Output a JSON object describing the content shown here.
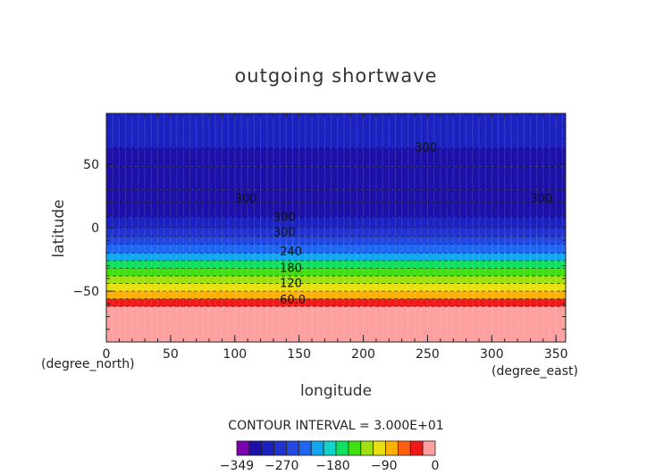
{
  "chart_data": {
    "type": "heatmap",
    "title": "outgoing shortwave",
    "xlabel": "longitude",
    "ylabel": "latitude",
    "x_unit": "(degree_east)",
    "y_unit": "(degree_north)",
    "xlim": [
      0,
      357.5
    ],
    "ylim": [
      -90,
      90
    ],
    "x_ticks": [
      0,
      50,
      100,
      150,
      200,
      250,
      300,
      350
    ],
    "y_ticks": [
      -50,
      0,
      50
    ],
    "contour_interval_text": "CONTOUR INTERVAL = 3.000E+01",
    "colorbar": {
      "min": -349,
      "max": 0,
      "tick_values": [
        -349,
        -270,
        -180,
        -90,
        0
      ],
      "tick_labels": [
        "−349",
        "−270",
        "−180",
        "−90",
        "0"
      ],
      "colors": [
        "#7a00b0",
        "#1c10a8",
        "#1c22c0",
        "#2033d0",
        "#2447e0",
        "#1f66f0",
        "#12a6f0",
        "#10d4c8",
        "#10e060",
        "#40e010",
        "#a0e010",
        "#e8e010",
        "#ffb000",
        "#ff6010",
        "#f01818",
        "#ffa0a0"
      ]
    },
    "contour_labels": [
      {
        "text": "300",
        "lon": 240,
        "lat": 63
      },
      {
        "text": "300",
        "lon": 100,
        "lat": 23
      },
      {
        "text": "300",
        "lon": 330,
        "lat": 23
      },
      {
        "text": "300",
        "lon": 130,
        "lat": 8
      },
      {
        "text": "300",
        "lon": 130,
        "lat": -4
      },
      {
        "text": "240",
        "lon": 135,
        "lat": -19
      },
      {
        "text": "180",
        "lon": 135,
        "lat": -32
      },
      {
        "text": "120",
        "lon": 135,
        "lat": -44
      },
      {
        "text": "60.0",
        "lon": 135,
        "lat": -57
      }
    ],
    "lat_bands": [
      {
        "lat_min": -90,
        "lat_max": -62,
        "value": -5
      },
      {
        "lat_min": -62,
        "lat_max": -56,
        "value": -40
      },
      {
        "lat_min": -56,
        "lat_max": -50,
        "value": -75
      },
      {
        "lat_min": -50,
        "lat_max": -44,
        "value": -100
      },
      {
        "lat_min": -44,
        "lat_max": -38,
        "value": -130
      },
      {
        "lat_min": -38,
        "lat_max": -32,
        "value": -150
      },
      {
        "lat_min": -32,
        "lat_max": -26,
        "value": -170
      },
      {
        "lat_min": -26,
        "lat_max": -20,
        "value": -200
      },
      {
        "lat_min": -20,
        "lat_max": -13,
        "value": -220
      },
      {
        "lat_min": -13,
        "lat_max": -7,
        "value": -250
      },
      {
        "lat_min": -7,
        "lat_max": 0,
        "value": -280
      },
      {
        "lat_min": 0,
        "lat_max": 8,
        "value": -300
      },
      {
        "lat_min": 8,
        "lat_max": 20,
        "value": -320
      },
      {
        "lat_min": 20,
        "lat_max": 30,
        "value": -310
      },
      {
        "lat_min": 30,
        "lat_max": 48,
        "value": -320
      },
      {
        "lat_min": 48,
        "lat_max": 63,
        "value": -315
      },
      {
        "lat_min": 63,
        "lat_max": 90,
        "value": -300
      }
    ]
  }
}
